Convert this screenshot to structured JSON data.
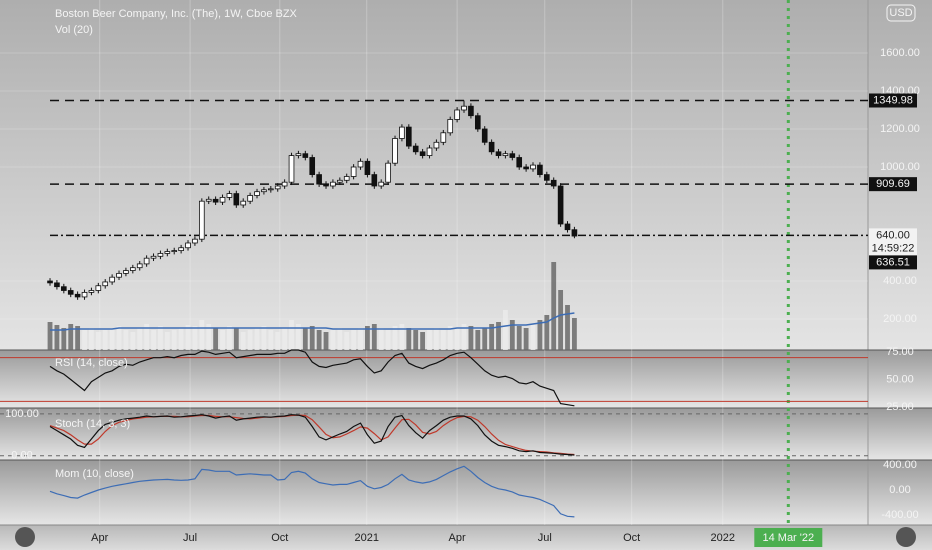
{
  "chart_data": {
    "type": "candlestick",
    "title": "Boston Beer Company, Inc. (The), 1W, Cboe BZX",
    "currency": "USD",
    "countdown": "14:59:22",
    "xlim": [
      -7.25,
      118.55
    ],
    "xticks": [
      {
        "value": 7.2,
        "label": "Apr"
      },
      {
        "value": 20.3,
        "label": "Jul"
      },
      {
        "value": 33.3,
        "label": "Oct"
      },
      {
        "value": 45.9,
        "label": "2021"
      },
      {
        "value": 59,
        "label": "Apr"
      },
      {
        "value": 71.7,
        "label": "Jul"
      },
      {
        "value": 84.3,
        "label": "Oct"
      },
      {
        "value": 97.5,
        "label": "2022"
      }
    ],
    "cursor": {
      "value": 107,
      "label": "14 Mar '22",
      "color": "#4caf50"
    },
    "ylim": [
      36.8,
      1878.9
    ],
    "yticks": [
      {
        "value": 200,
        "label": "200.00"
      },
      {
        "value": 400,
        "label": "400.00"
      },
      {
        "value": 1000,
        "label": "1000.00"
      },
      {
        "value": 1200,
        "label": "1200.00"
      },
      {
        "value": 1400,
        "label": "1400.00"
      },
      {
        "value": 1600,
        "label": "1600.00"
      }
    ],
    "levels": [
      {
        "value": 1349.98,
        "label": "1349.98"
      },
      {
        "value": 909.69,
        "label": "909.69"
      },
      {
        "value": 640,
        "label": "640.00"
      }
    ],
    "up_color": "#ffffff",
    "down_color": "#111111",
    "open": [
      400,
      390,
      370,
      350,
      330,
      316,
      340,
      350,
      375,
      395,
      420,
      440,
      455,
      470,
      490,
      520,
      530,
      545,
      555,
      560,
      575,
      600,
      620,
      820,
      830,
      815,
      840,
      860,
      800,
      820,
      850,
      870,
      880,
      885,
      900,
      920,
      1060,
      1070,
      1050,
      960,
      910,
      900,
      920,
      930,
      950,
      1000,
      1030,
      960,
      900,
      920,
      1020,
      1150,
      1210,
      1110,
      1080,
      1060,
      1100,
      1130,
      1180,
      1250,
      1300,
      1320,
      1270,
      1200,
      1130,
      1080,
      1060,
      1070,
      1050,
      1000,
      990,
      1010,
      960,
      930,
      900,
      700,
      670
    ],
    "high": [
      415,
      405,
      385,
      365,
      345,
      355,
      365,
      390,
      410,
      435,
      455,
      470,
      485,
      505,
      535,
      545,
      560,
      570,
      575,
      590,
      615,
      635,
      835,
      845,
      845,
      855,
      875,
      875,
      835,
      865,
      885,
      895,
      900,
      915,
      935,
      1075,
      1085,
      1085,
      1065,
      975,
      925,
      935,
      945,
      965,
      1015,
      1045,
      1045,
      975,
      935,
      1035,
      1165,
      1225,
      1225,
      1125,
      1095,
      1115,
      1145,
      1195,
      1265,
      1315,
      1349.98,
      1335,
      1285,
      1215,
      1145,
      1095,
      1085,
      1085,
      1065,
      1015,
      1025,
      1025,
      975,
      945,
      915,
      715,
      685
    ],
    "low": [
      375,
      355,
      335,
      315,
      301,
      301,
      325,
      335,
      360,
      380,
      405,
      425,
      440,
      455,
      475,
      505,
      515,
      530,
      540,
      545,
      560,
      585,
      605,
      805,
      800,
      800,
      825,
      785,
      785,
      805,
      835,
      855,
      865,
      870,
      885,
      905,
      1045,
      1035,
      945,
      895,
      885,
      885,
      905,
      915,
      935,
      985,
      945,
      885,
      885,
      905,
      1005,
      1135,
      1095,
      1065,
      1045,
      1045,
      1085,
      1115,
      1165,
      1235,
      1285,
      1255,
      1185,
      1115,
      1065,
      1045,
      1045,
      1035,
      985,
      975,
      975,
      945,
      915,
      885,
      685,
      655,
      625
    ],
    "close": [
      390,
      370,
      350,
      330,
      316,
      340,
      350,
      375,
      395,
      420,
      440,
      455,
      470,
      490,
      520,
      530,
      545,
      555,
      560,
      575,
      600,
      620,
      820,
      830,
      815,
      840,
      860,
      800,
      820,
      850,
      870,
      880,
      885,
      900,
      920,
      1060,
      1070,
      1050,
      960,
      910,
      900,
      920,
      930,
      950,
      1000,
      1030,
      960,
      900,
      920,
      1020,
      1150,
      1210,
      1110,
      1080,
      1060,
      1100,
      1130,
      1180,
      1250,
      1300,
      1320,
      1270,
      1200,
      1130,
      1080,
      1060,
      1070,
      1050,
      1000,
      990,
      1010,
      960,
      930,
      900,
      700,
      670,
      636.51
    ],
    "volume": {
      "name": "Vol (20)",
      "ylim": [
        0,
        350
      ],
      "up_color": "#ebebeb",
      "down_color": "#6a6a6a",
      "ma_color": "#3d6db5",
      "values": [
        28,
        25,
        22,
        26,
        24,
        20,
        22,
        18,
        20,
        22,
        24,
        20,
        18,
        22,
        26,
        20,
        24,
        18,
        20,
        22,
        25,
        24,
        30,
        26,
        22,
        20,
        24,
        22,
        18,
        20,
        22,
        24,
        20,
        18,
        22,
        30,
        26,
        22,
        24,
        20,
        18,
        20,
        22,
        18,
        20,
        22,
        24,
        26,
        22,
        20,
        24,
        26,
        22,
        20,
        18,
        20,
        22,
        20,
        24,
        22,
        26,
        24,
        20,
        22,
        26,
        28,
        40,
        30,
        24,
        22,
        26,
        30,
        35,
        88,
        60,
        45,
        32
      ],
      "ma": [
        20,
        20,
        20,
        21,
        21,
        21,
        21,
        21,
        21,
        21,
        22,
        22,
        22,
        22,
        22,
        22,
        22,
        22,
        22,
        22,
        22,
        22,
        22,
        22,
        22,
        22,
        22,
        22,
        22,
        22,
        22,
        22,
        22,
        22,
        22,
        22,
        22,
        22,
        22,
        22,
        22,
        21,
        21,
        21,
        21,
        21,
        21,
        21,
        21,
        21,
        21,
        21,
        21,
        21,
        21,
        21,
        21,
        21,
        21,
        22,
        22,
        22,
        22,
        22,
        22,
        23,
        24,
        25,
        25,
        25,
        26,
        27,
        28,
        32,
        35,
        36,
        37
      ]
    },
    "rsi": {
      "name": "RSI (14, close)",
      "color": "#111111",
      "level_color": "#c0392b",
      "ylim": [
        24,
        77
      ],
      "levels": [
        70,
        30
      ],
      "yticks": [
        {
          "value": 75,
          "label": "75.00"
        },
        {
          "value": 50,
          "label": "50.00"
        },
        {
          "value": 25,
          "label": "25.00"
        }
      ],
      "values": [
        62,
        58,
        55,
        50,
        45,
        40,
        48,
        52,
        56,
        58,
        62,
        64,
        63,
        66,
        68,
        70,
        70,
        71,
        70,
        72,
        73,
        73,
        76,
        75,
        73,
        74,
        75,
        70,
        71,
        72,
        73,
        73,
        73,
        74,
        74,
        77,
        77,
        75,
        66,
        62,
        61,
        63,
        64,
        65,
        68,
        69,
        62,
        56,
        58,
        66,
        72,
        74,
        65,
        62,
        60,
        63,
        65,
        68,
        72,
        74,
        75,
        70,
        64,
        58,
        54,
        52,
        53,
        51,
        47,
        46,
        48,
        44,
        42,
        40,
        28,
        27,
        26
      ]
    },
    "stoch": {
      "name": "Stoch (14, 3, 3)",
      "k_color": "#111111",
      "d_color": "#c0392b",
      "ylim": [
        -10,
        114
      ],
      "yticks": [
        {
          "value": 100,
          "label": "100.00"
        },
        {
          "value": 0,
          "label": "0.00"
        }
      ],
      "k": [
        70,
        60,
        50,
        40,
        25,
        20,
        40,
        60,
        75,
        80,
        85,
        88,
        90,
        92,
        95,
        93,
        94,
        95,
        92,
        93,
        95,
        96,
        98,
        95,
        90,
        93,
        95,
        85,
        88,
        90,
        92,
        93,
        92,
        94,
        95,
        98,
        97,
        92,
        70,
        45,
        38,
        45,
        52,
        58,
        70,
        78,
        50,
        30,
        35,
        70,
        92,
        96,
        72,
        55,
        42,
        60,
        72,
        85,
        92,
        95,
        95,
        88,
        72,
        50,
        35,
        25,
        22,
        18,
        12,
        10,
        12,
        8,
        7,
        6,
        4,
        3,
        2
      ],
      "d": [
        72,
        66,
        60,
        50,
        38,
        28,
        28,
        40,
        58,
        72,
        80,
        84,
        88,
        90,
        92,
        93,
        94,
        94,
        94,
        93,
        93,
        95,
        96,
        96,
        94,
        93,
        93,
        91,
        89,
        88,
        90,
        92,
        92,
        93,
        94,
        96,
        97,
        96,
        86,
        69,
        51,
        43,
        45,
        52,
        60,
        69,
        66,
        53,
        38,
        45,
        66,
        86,
        87,
        74,
        56,
        52,
        58,
        72,
        83,
        91,
        94,
        93,
        85,
        70,
        52,
        37,
        27,
        22,
        17,
        13,
        11,
        10,
        9,
        7,
        6,
        4,
        3
      ]
    },
    "mom": {
      "name": "Mom (10, close)",
      "color": "#3d6db5",
      "ylim": [
        -560,
        480
      ],
      "yticks": [
        {
          "value": 400,
          "label": "400.00"
        },
        {
          "value": 0,
          "label": "0.00"
        },
        {
          "value": -400,
          "label": "-400.00"
        }
      ],
      "values": [
        -20,
        -60,
        -90,
        -120,
        -130,
        -80,
        -40,
        0,
        30,
        60,
        80,
        100,
        120,
        140,
        150,
        160,
        165,
        170,
        160,
        155,
        160,
        180,
        330,
        320,
        300,
        300,
        300,
        240,
        250,
        260,
        250,
        240,
        240,
        160,
        170,
        280,
        300,
        270,
        180,
        120,
        100,
        80,
        90,
        90,
        120,
        150,
        60,
        20,
        40,
        90,
        180,
        250,
        160,
        130,
        110,
        130,
        170,
        230,
        290,
        340,
        380,
        300,
        200,
        120,
        60,
        20,
        0,
        -30,
        -80,
        -100,
        -120,
        -150,
        -200,
        -250,
        -380,
        -420,
        -430
      ]
    }
  }
}
